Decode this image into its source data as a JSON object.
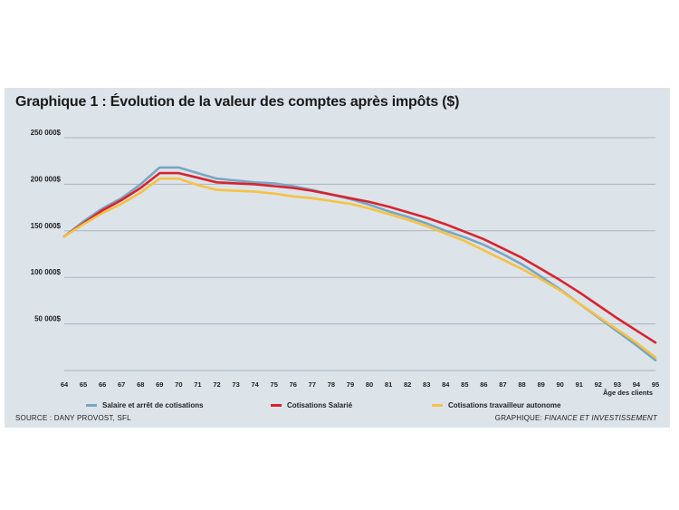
{
  "colors": {
    "panel_bg": "#dce4ea",
    "grid": "#a9b5bf",
    "series": [
      "#7aa6c0",
      "#d9232d",
      "#f7c144"
    ]
  },
  "chart_data": {
    "type": "line",
    "title": "Graphique 1 : Évolution de la valeur des comptes après impôts ($)",
    "xlabel": "Âge des clients",
    "ylabel": "",
    "x": [
      64,
      65,
      66,
      67,
      68,
      69,
      70,
      71,
      72,
      73,
      74,
      75,
      76,
      77,
      78,
      79,
      80,
      81,
      82,
      83,
      84,
      85,
      86,
      87,
      88,
      89,
      90,
      91,
      92,
      93,
      94,
      95
    ],
    "ylim": [
      0,
      250000
    ],
    "yticks": [
      50000,
      100000,
      150000,
      200000,
      250000
    ],
    "ytick_labels": [
      "50 000$",
      "100 000$",
      "150 000$",
      "200 000$",
      "250 000$"
    ],
    "grid": true,
    "legend_position": "bottom",
    "series": [
      {
        "name": "Salaire et arrêt de cotisations",
        "values": [
          144000,
          160000,
          174000,
          185000,
          200000,
          218000,
          218000,
          212000,
          206000,
          204000,
          202000,
          201000,
          198000,
          194000,
          189000,
          184000,
          178000,
          171000,
          165000,
          158000,
          150000,
          143000,
          135000,
          125000,
          114000,
          101000,
          87000,
          72000,
          57000,
          42000,
          27000,
          11000
        ]
      },
      {
        "name": "Cotisations Salarié",
        "values": [
          144000,
          158000,
          172000,
          183000,
          196000,
          212000,
          212000,
          207000,
          202000,
          201000,
          200000,
          198000,
          196000,
          193000,
          189000,
          185000,
          181000,
          176000,
          170000,
          164000,
          157000,
          149000,
          141000,
          131000,
          121000,
          109000,
          97000,
          84000,
          70000,
          56000,
          43000,
          30000
        ]
      },
      {
        "name": "Cotisations travailleur autonome",
        "values": [
          144000,
          157000,
          169000,
          179000,
          191000,
          206000,
          206000,
          199000,
          194000,
          193000,
          192000,
          190000,
          187000,
          185000,
          182000,
          179000,
          174000,
          168000,
          162000,
          155000,
          147000,
          139000,
          129000,
          119000,
          109000,
          98000,
          86000,
          72000,
          58000,
          44000,
          30000,
          14000
        ]
      }
    ]
  },
  "footer": {
    "source": "SOURCE : DANY PROVOST, SFL",
    "credit_label": "GRAPHIQUE: ",
    "credit_name": "FINANCE ET INVESTISSEMENT"
  }
}
